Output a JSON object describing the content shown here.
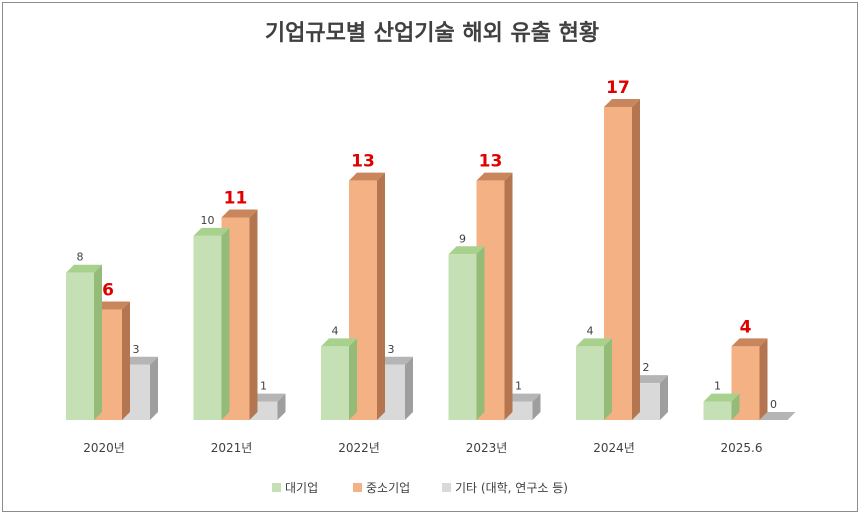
{
  "chart_data": {
    "type": "bar",
    "title": "기업규모별 산업기술 해외 유출 현황",
    "categories": [
      "2020년",
      "2021년",
      "2022년",
      "2023년",
      "2024년",
      "2025.6"
    ],
    "series": [
      {
        "name": "대기업",
        "values": [
          8,
          10,
          4,
          9,
          4,
          1
        ],
        "color": "#c5e0b4",
        "top": "#a9d18e",
        "side": "#94bb78"
      },
      {
        "name": "중소기업",
        "values": [
          6,
          11,
          13,
          13,
          17,
          4
        ],
        "color": "#f4b183",
        "top": "#c9855c",
        "side": "#b47650",
        "highlight_labels": true
      },
      {
        "name": "기타 (대학, 연구소 등)",
        "values": [
          3,
          1,
          3,
          1,
          2,
          0
        ],
        "color": "#d9d9d9",
        "top": "#b5b5b5",
        "side": "#9e9e9e"
      }
    ],
    "ylim": [
      0,
      17
    ],
    "grid": false,
    "legend_position": "bottom"
  }
}
